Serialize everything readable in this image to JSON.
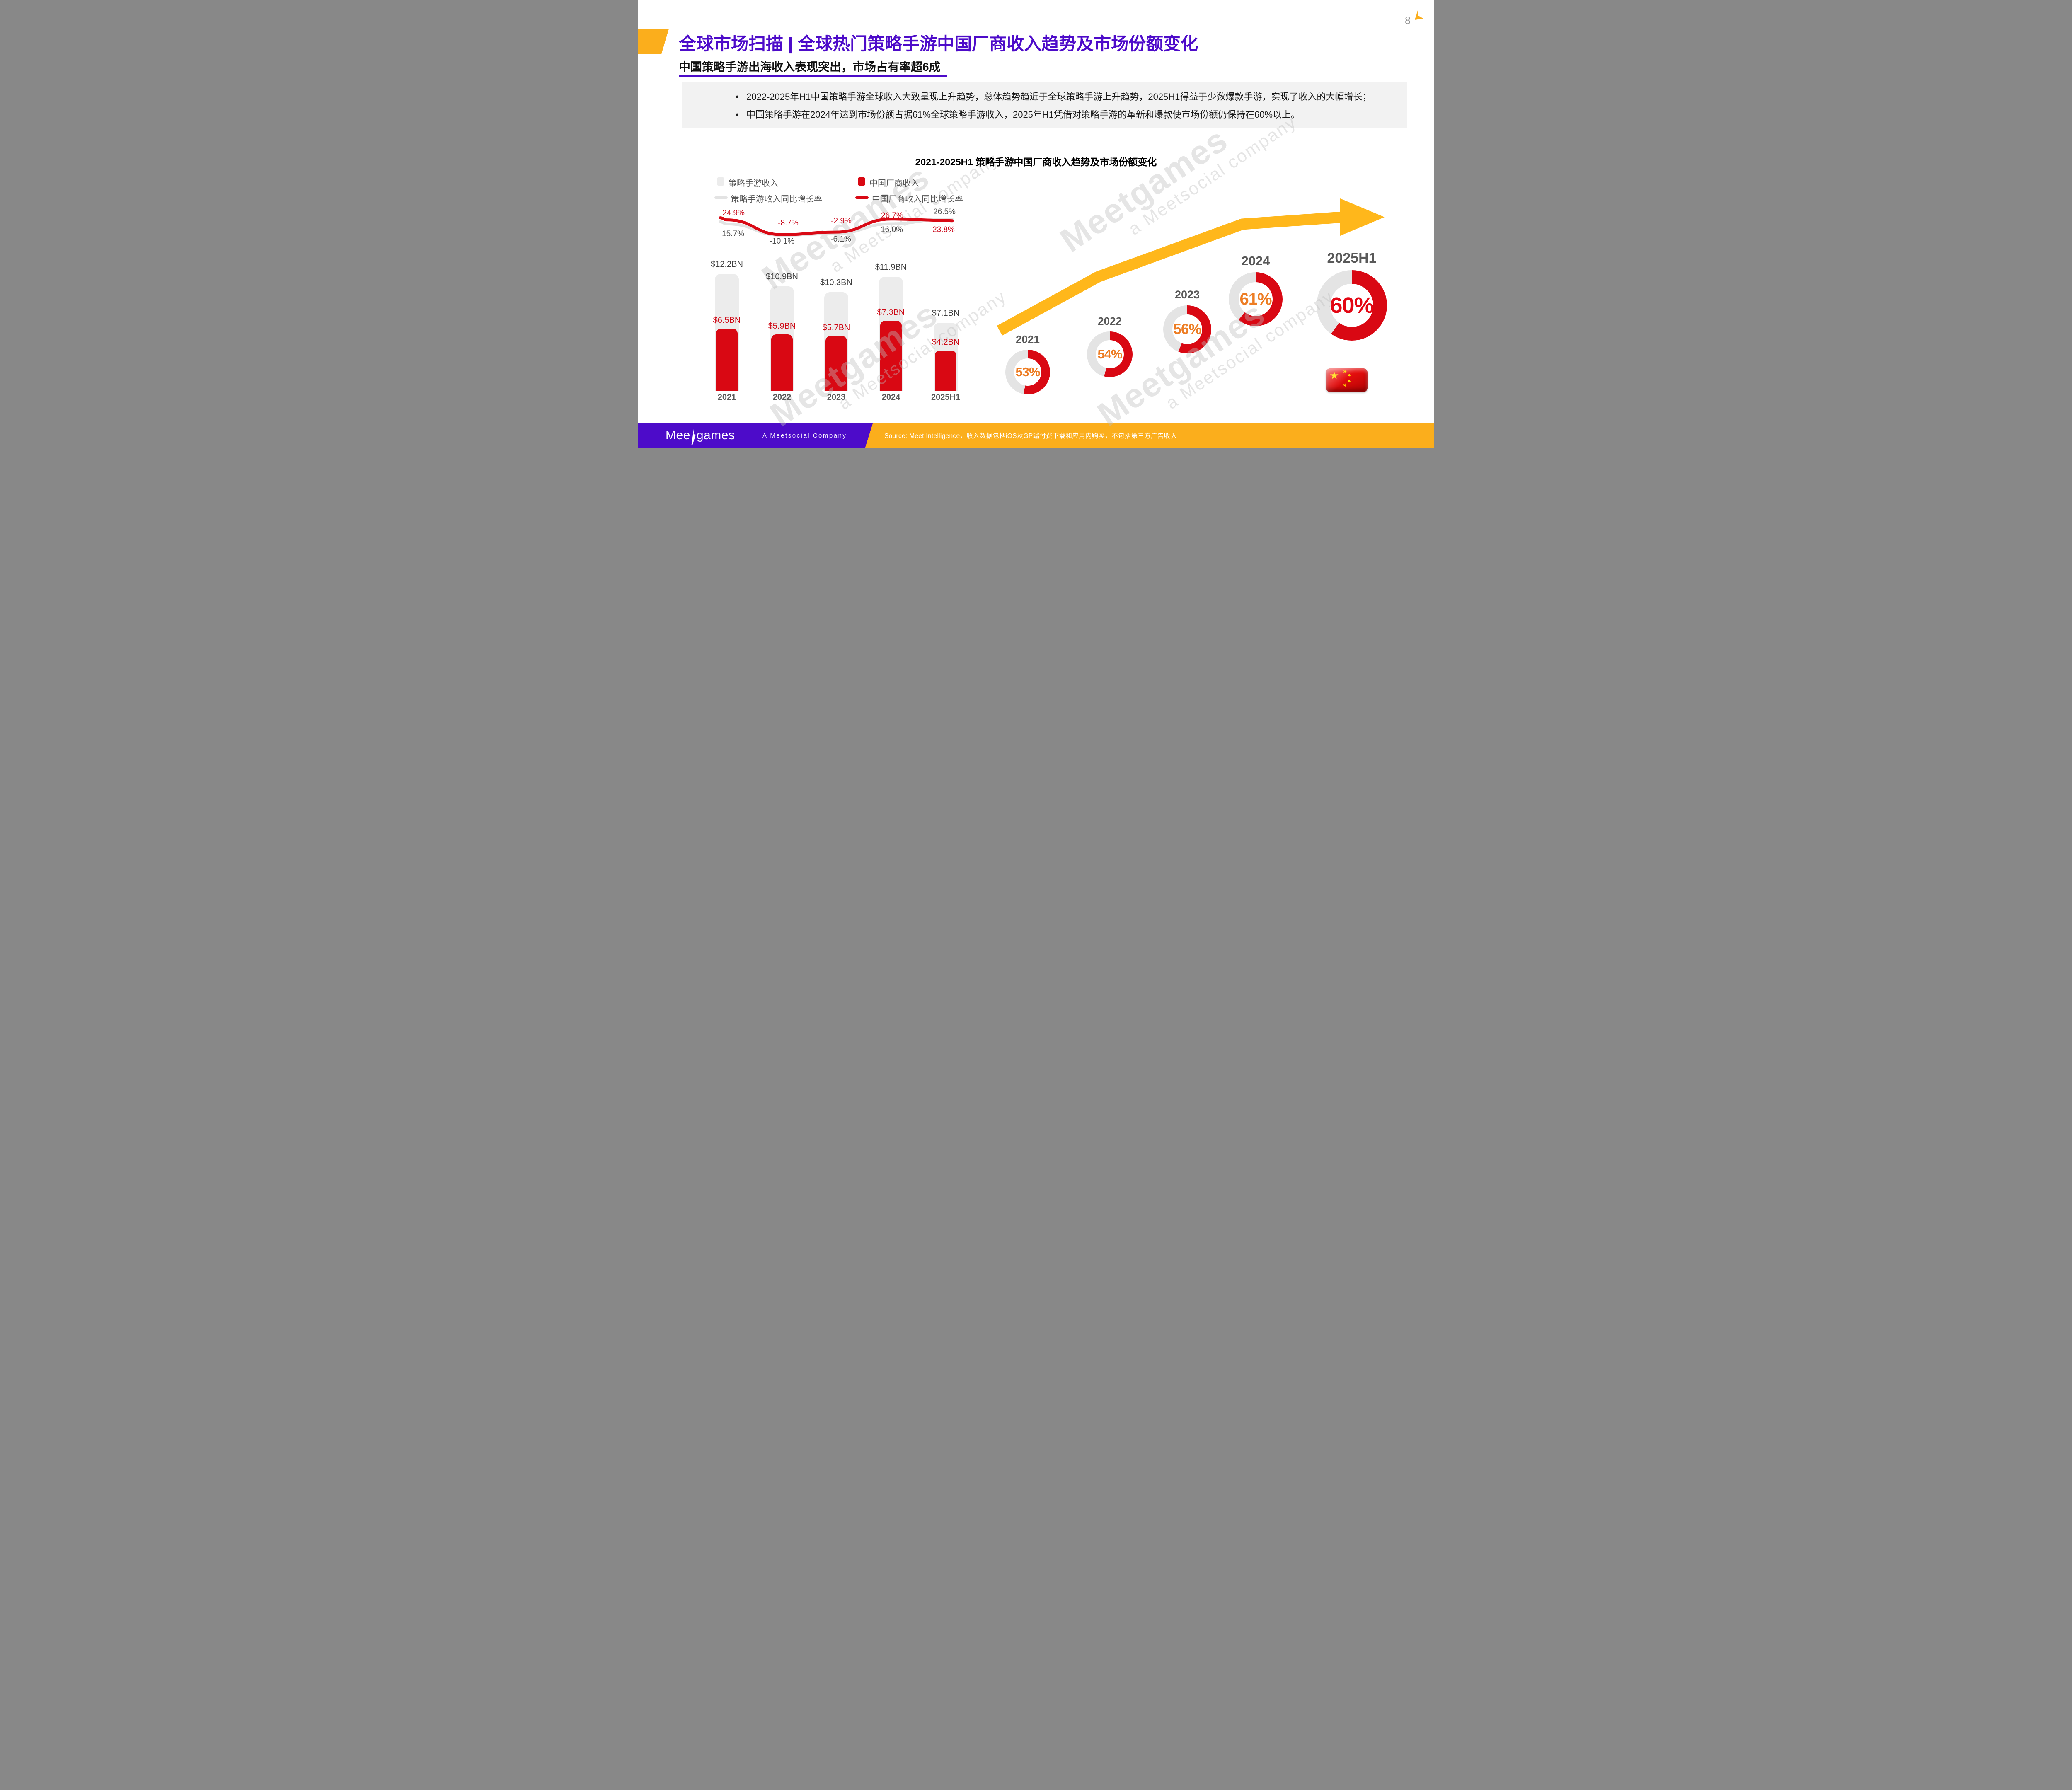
{
  "page": {
    "number": "8"
  },
  "header": {
    "title": "全球市场扫描 | 全球热门策略手游中国厂商收入趋势及市场份额变化",
    "subtitle": "中国策略手游出海收入表现突出，市场占有率超6成"
  },
  "summary": {
    "bullets": [
      "2022-2025年H1中国策略手游全球收入大致呈现上升趋势，总体趋势趋近于全球策略手游上升趋势，2025H1得益于少数爆款手游，实现了收入的大幅增长；",
      "中国策略手游在2024年达到市场份额占据61%全球策略手游收入，2025年H1凭借对策略手游的革新和爆款使市场份额仍保持在60%以上。"
    ]
  },
  "chart_data": [
    {
      "type": "bar",
      "title": "2021-2025H1 策略手游中国厂商收入趋势及市场份额变化",
      "categories": [
        "2021",
        "2022",
        "2023",
        "2024",
        "2025H1"
      ],
      "unit": "USD billions",
      "ylim": [
        0,
        12.2
      ],
      "grid": false,
      "legend_position": "top-left",
      "series": [
        {
          "name": "策略手游收入",
          "type": "bar",
          "color": "#ECECEC",
          "values": [
            12.2,
            10.9,
            10.3,
            11.9,
            7.1
          ],
          "labels": [
            "$12.2BN",
            "$10.9BN",
            "$10.3BN",
            "$11.9BN",
            "$7.1BN"
          ]
        },
        {
          "name": "中国厂商收入",
          "type": "bar",
          "color": "#D90813",
          "values": [
            6.5,
            5.9,
            5.7,
            7.3,
            4.2
          ],
          "labels": [
            "$6.5BN",
            "$5.9BN",
            "$5.7BN",
            "$7.3BN",
            "$4.2BN"
          ]
        },
        {
          "name": "策略手游收入同比增长率",
          "type": "line",
          "color": "#E3E3E3",
          "values": [
            15.7,
            -10.1,
            -6.1,
            16.0,
            26.5
          ],
          "labels": [
            "15.7%",
            "-10.1%",
            "-6.1%",
            "16.0%",
            "26.5%"
          ]
        },
        {
          "name": "中国厂商收入同比增长率",
          "type": "line",
          "color": "#D90915",
          "values": [
            24.9,
            -8.7,
            -2.9,
            26.7,
            23.8
          ],
          "labels": [
            "24.9%",
            "-8.7%",
            "-2.9%",
            "26.7%",
            "23.8%"
          ]
        }
      ]
    },
    {
      "type": "pie",
      "subtype": "donut-progression",
      "categories": [
        "2021",
        "2022",
        "2023",
        "2024",
        "2025H1"
      ],
      "values": [
        53,
        54,
        56,
        61,
        60
      ],
      "labels": [
        "53%",
        "54%",
        "56%",
        "61%",
        "60%"
      ],
      "value_colors": [
        "#ED7D24",
        "#ED7D24",
        "#ED7D24",
        "#ED7D24",
        "#E30613"
      ],
      "ring_color": "#D90813",
      "track_color": "#E4E4E4"
    }
  ],
  "watermark": {
    "brand": "Meetgames",
    "tagline": "a Meetsocial company"
  },
  "footer": {
    "logo": "Meetgames",
    "company": "A Meetsocial Company",
    "source": "Source: Meet Intelligence，收入数据包括iOS及GP端付费下载和应用内购买，不包括第三方广告收入"
  },
  "icons": {
    "brand_mark": "meetgames-bolt-icon",
    "flag": "china-flag-icon"
  },
  "colors": {
    "brand_purple": "#4D0BC9",
    "brand_orange": "#FBAE1C",
    "bar_red": "#D90813",
    "pct_orange": "#ED7D24",
    "bar_track_gray": "#ECECEC",
    "text_dark_gray": "#595959"
  }
}
